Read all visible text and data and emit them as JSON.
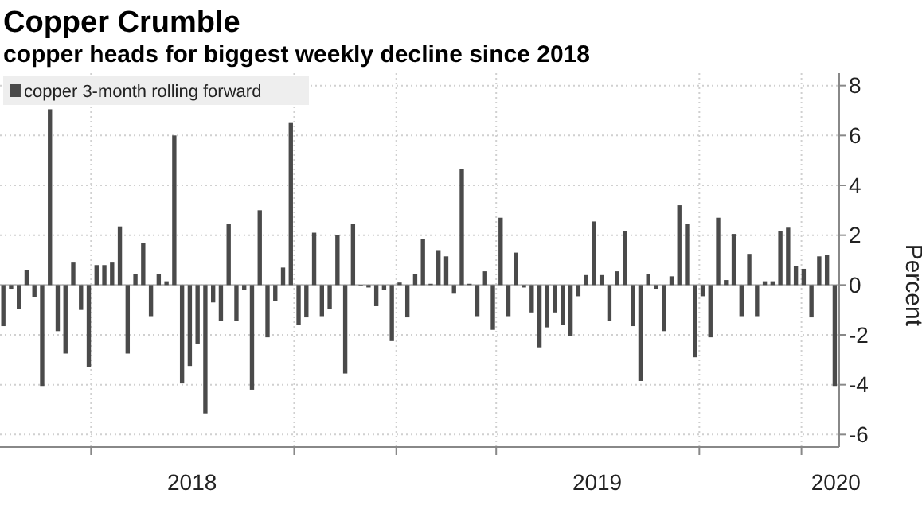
{
  "chart_data": {
    "type": "bar",
    "title": "Copper Crumble",
    "subtitle": "copper heads for biggest weekly decline since 2018",
    "ylabel": "Percent",
    "x": [
      "2018-01-12",
      "2018-01-19",
      "2018-01-26",
      "2018-02-02",
      "2018-02-09",
      "2018-02-16",
      "2018-02-23",
      "2018-03-02",
      "2018-03-09",
      "2018-03-16",
      "2018-03-23",
      "2018-03-30",
      "2018-04-06",
      "2018-04-13",
      "2018-04-20",
      "2018-04-27",
      "2018-05-04",
      "2018-05-11",
      "2018-05-18",
      "2018-05-25",
      "2018-06-01",
      "2018-06-08",
      "2018-06-15",
      "2018-06-22",
      "2018-06-29",
      "2018-07-06",
      "2018-07-13",
      "2018-07-20",
      "2018-07-27",
      "2018-08-03",
      "2018-08-10",
      "2018-08-17",
      "2018-08-24",
      "2018-08-31",
      "2018-09-07",
      "2018-09-14",
      "2018-09-21",
      "2018-09-28",
      "2018-10-05",
      "2018-10-12",
      "2018-10-19",
      "2018-10-26",
      "2018-11-02",
      "2018-11-09",
      "2018-11-16",
      "2018-11-23",
      "2018-11-30",
      "2018-12-07",
      "2018-12-14",
      "2018-12-21",
      "2018-12-28",
      "2019-01-04",
      "2019-01-11",
      "2019-01-18",
      "2019-01-25",
      "2019-02-01",
      "2019-02-08",
      "2019-02-15",
      "2019-02-22",
      "2019-03-01",
      "2019-03-08",
      "2019-03-15",
      "2019-03-22",
      "2019-03-29",
      "2019-04-05",
      "2019-04-12",
      "2019-04-19",
      "2019-04-26",
      "2019-05-03",
      "2019-05-10",
      "2019-05-17",
      "2019-05-24",
      "2019-05-31",
      "2019-06-07",
      "2019-06-14",
      "2019-06-21",
      "2019-06-28",
      "2019-07-05",
      "2019-07-12",
      "2019-07-19",
      "2019-07-26",
      "2019-08-02",
      "2019-08-09",
      "2019-08-16",
      "2019-08-23",
      "2019-08-30",
      "2019-09-06",
      "2019-09-13",
      "2019-09-20",
      "2019-09-27",
      "2019-10-04",
      "2019-10-11",
      "2019-10-18",
      "2019-10-25",
      "2019-11-01",
      "2019-11-08",
      "2019-11-15",
      "2019-11-22",
      "2019-11-29",
      "2019-12-06",
      "2019-12-13",
      "2019-12-20",
      "2019-12-27",
      "2020-01-03",
      "2020-01-10",
      "2020-01-17",
      "2020-01-24",
      "2020-01-31"
    ],
    "series": [
      {
        "name": "copper 3-month rolling forward",
        "color": "#4a4a4a",
        "values": [
          -1.65,
          -0.15,
          -0.95,
          0.6,
          -0.5,
          -4.05,
          7.05,
          -1.85,
          -2.75,
          0.9,
          -1.0,
          -3.3,
          0.8,
          0.8,
          0.9,
          2.35,
          -2.75,
          0.45,
          1.7,
          -1.25,
          0.45,
          0.15,
          6.0,
          -3.95,
          -3.25,
          -2.35,
          -5.15,
          -0.7,
          -1.45,
          2.45,
          -1.45,
          -0.2,
          -4.2,
          3.0,
          -2.1,
          -0.65,
          0.7,
          6.5,
          -1.6,
          -1.3,
          2.1,
          -1.25,
          -0.95,
          2.0,
          -3.55,
          2.45,
          -0.05,
          -0.1,
          -0.85,
          -0.2,
          -2.25,
          0.1,
          -1.3,
          0.45,
          1.85,
          0.05,
          1.4,
          1.15,
          -0.35,
          4.65,
          0.05,
          -1.25,
          0.55,
          -1.8,
          2.7,
          -1.25,
          1.3,
          -0.1,
          -1.1,
          -2.5,
          -1.7,
          -1.1,
          -1.6,
          -2.05,
          -0.45,
          0.4,
          2.55,
          0.4,
          -1.45,
          0.55,
          2.15,
          -1.65,
          -3.85,
          0.45,
          -0.15,
          -1.85,
          0.35,
          3.2,
          2.45,
          -2.9,
          -0.45,
          -2.1,
          2.7,
          0.2,
          2.05,
          -1.25,
          1.25,
          -1.25,
          0.15,
          0.15,
          2.15,
          2.3,
          0.75,
          0.65,
          -1.3,
          1.15,
          1.2,
          -4.05
        ]
      }
    ],
    "xlim": [
      "2018-01-09",
      "2020-02-04"
    ],
    "xticks": [
      {
        "value": "2018-04-01",
        "label": null
      },
      {
        "value": "2018-07-01",
        "label": "2018"
      },
      {
        "value": "2018-10-01",
        "label": null
      },
      {
        "value": "2019-01-01",
        "label": null
      },
      {
        "value": "2019-04-01",
        "label": null
      },
      {
        "value": "2019-07-01",
        "label": "2019"
      },
      {
        "value": "2019-10-01",
        "label": null
      },
      {
        "value": "2020-01-01",
        "label": null
      },
      {
        "value": "2020-02-01",
        "label": "2020"
      }
    ],
    "ylim": [
      -6.5,
      8.5
    ],
    "yticks": [
      -6,
      -4,
      -2,
      0,
      2,
      4,
      6,
      8
    ],
    "grid": true,
    "legend": "top left"
  }
}
